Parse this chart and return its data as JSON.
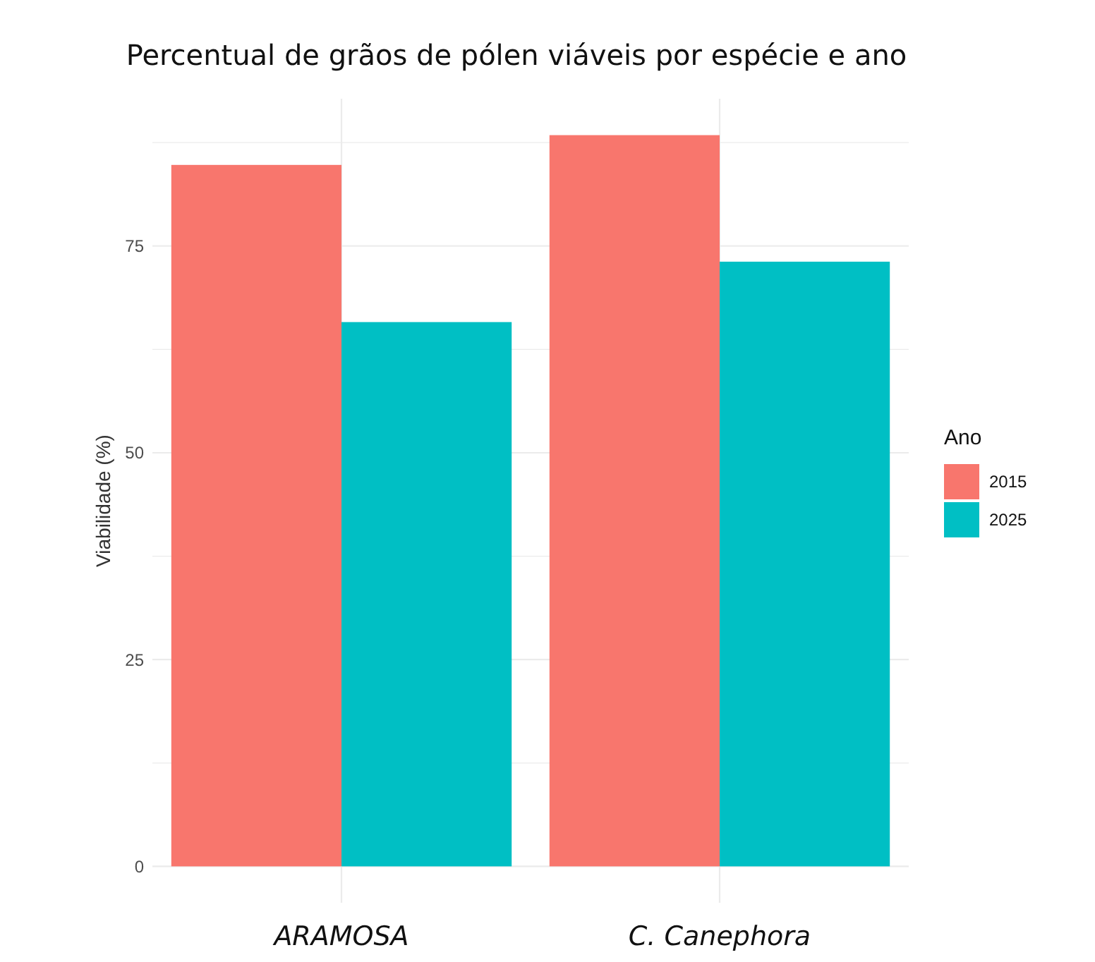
{
  "chart_data": {
    "type": "bar",
    "title": "Percentual de grãos de pólen viáveis por espécie e ano",
    "ylabel": "Viabilidade (%)",
    "legend_title": "Ano",
    "categories": [
      "ARAMOSA",
      "C. Canephora"
    ],
    "series": [
      {
        "name": "2015",
        "color": "#f8766d",
        "values": [
          84.8,
          88.4
        ]
      },
      {
        "name": "2025",
        "color": "#00bfc4",
        "values": [
          65.8,
          73.1
        ]
      }
    ],
    "ylim": [
      -4.4,
      92.8
    ],
    "yticks": [
      0,
      {
        "value": 12.5,
        "label": null
      },
      25,
      {
        "value": 37.5,
        "label": null
      },
      50,
      {
        "value": 62.5,
        "label": null
      },
      75,
      {
        "value": 87.5,
        "label": null
      }
    ],
    "grid": true,
    "legend": "right"
  }
}
